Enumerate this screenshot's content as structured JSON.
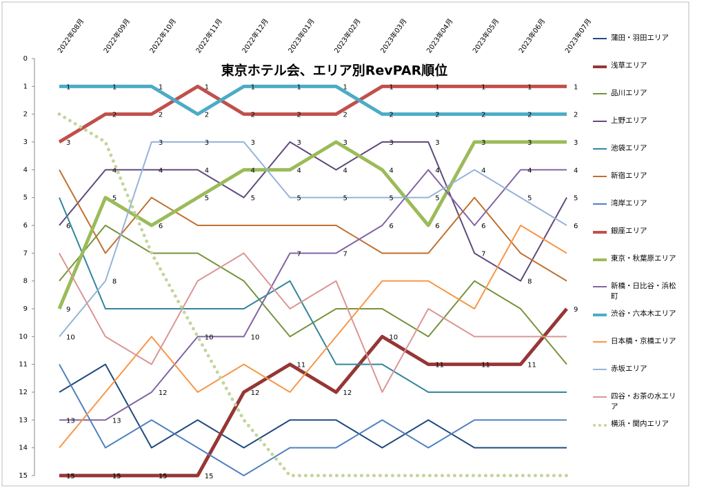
{
  "chart_data": {
    "type": "line",
    "title": "東京ホテル会、エリア別RevPAR順位",
    "categories": [
      "2022年08月",
      "2022年09月",
      "2022年10月",
      "2022年11月",
      "2022年12月",
      "2023年01月",
      "2023年02月",
      "2023年03月",
      "2023年04月",
      "2023年05月",
      "2023年06月",
      "2023年07月"
    ],
    "ylim": [
      0,
      15
    ],
    "y_inverted": true,
    "yticks": [
      0,
      1,
      2,
      3,
      4,
      5,
      6,
      7,
      8,
      9,
      10,
      11,
      12,
      13,
      14,
      15
    ],
    "legend": "right",
    "series": [
      {
        "name": "蒲田・羽田エリア",
        "color": "#1f497d",
        "values": [
          12,
          11,
          14,
          13,
          14,
          13,
          13,
          14,
          13,
          14,
          14,
          14
        ]
      },
      {
        "name": "浅草エリア",
        "color": "#953735",
        "thick": true,
        "data_labels": true,
        "values": [
          15,
          15,
          15,
          15,
          12,
          11,
          12,
          10,
          11,
          11,
          11,
          9
        ]
      },
      {
        "name": "品川エリア",
        "color": "#77933c",
        "values": [
          8,
          6,
          7,
          7,
          8,
          10,
          9,
          9,
          10,
          8,
          9,
          11
        ]
      },
      {
        "name": "上野エリア",
        "color": "#5f497a",
        "data_labels": true,
        "values": [
          6,
          4,
          4,
          4,
          5,
          3,
          4,
          3,
          3,
          7,
          8,
          5
        ]
      },
      {
        "name": "池袋エリア",
        "color": "#31859c",
        "values": [
          5,
          9,
          9,
          9,
          9,
          8,
          11,
          11,
          12,
          12,
          12,
          12
        ]
      },
      {
        "name": "新宿エリア",
        "color": "#c0702e",
        "values": [
          4,
          7,
          5,
          6,
          6,
          6,
          6,
          7,
          7,
          5,
          7,
          8
        ]
      },
      {
        "name": "湾岸エリア",
        "color": "#4f81bd",
        "values": [
          11,
          14,
          13,
          14,
          15,
          14,
          14,
          13,
          14,
          13,
          13,
          13
        ]
      },
      {
        "name": "銀座エリア",
        "color": "#c0504d",
        "thick": true,
        "data_labels": true,
        "values": [
          3,
          2,
          2,
          1,
          2,
          2,
          2,
          1,
          1,
          1,
          1,
          1
        ]
      },
      {
        "name": "東京・秋葉原エリア",
        "color": "#9bbb59",
        "thick": true,
        "data_labels": true,
        "values": [
          9,
          5,
          6,
          5,
          4,
          4,
          3,
          4,
          6,
          3,
          3,
          3
        ]
      },
      {
        "name": "新橋・日比谷・浜松町",
        "color": "#8064a2",
        "data_labels": true,
        "values": [
          13,
          13,
          12,
          10,
          10,
          7,
          7,
          6,
          4,
          6,
          4,
          4
        ]
      },
      {
        "name": "渋谷・六本木エリア",
        "color": "#4bacc6",
        "thick": true,
        "data_labels": true,
        "values": [
          1,
          1,
          1,
          2,
          1,
          1,
          1,
          2,
          2,
          2,
          2,
          2
        ]
      },
      {
        "name": "日本橋・京橋エリア",
        "color": "#f79646",
        "values": [
          14,
          12,
          10,
          12,
          11,
          12,
          10,
          8,
          8,
          9,
          6,
          7
        ]
      },
      {
        "name": "赤坂エリア",
        "color": "#95b3d7",
        "data_labels": true,
        "values": [
          10,
          8,
          3,
          3,
          3,
          5,
          5,
          5,
          5,
          4,
          5,
          6
        ]
      },
      {
        "name": "四谷・お茶の水エリア",
        "color": "#d99694",
        "values": [
          7,
          10,
          11,
          8,
          7,
          9,
          8,
          12,
          9,
          10,
          10,
          10
        ]
      },
      {
        "name": "横浜・関内エリア",
        "color": "#c3d69b",
        "thick": true,
        "dotted": true,
        "values": [
          2,
          3,
          7,
          10,
          13,
          15,
          15,
          15,
          15,
          15,
          15,
          15
        ]
      }
    ]
  }
}
